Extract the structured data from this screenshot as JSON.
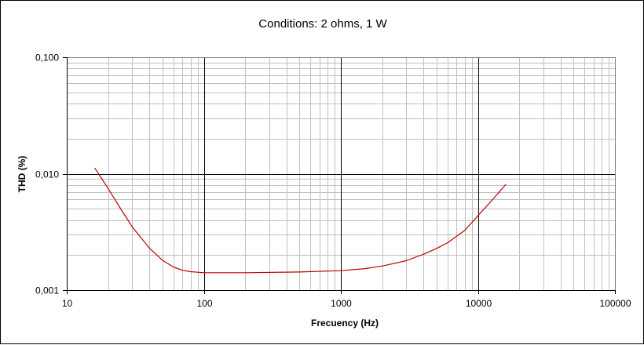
{
  "chart_data": {
    "type": "line",
    "title": "Conditions: 2 ohms, 1 W",
    "xlabel": "Frecuency (Hz)",
    "ylabel": "THD (%)",
    "x_scale": "log",
    "y_scale": "log",
    "xlim": [
      10,
      100000
    ],
    "ylim": [
      0.001,
      0.1
    ],
    "x_ticks": [
      {
        "value": 10,
        "label": "10"
      },
      {
        "value": 100,
        "label": "100"
      },
      {
        "value": 1000,
        "label": "1000"
      },
      {
        "value": 10000,
        "label": "10000"
      },
      {
        "value": 100000,
        "label": "100000"
      }
    ],
    "y_ticks": [
      {
        "value": 0.001,
        "label": "0,001"
      },
      {
        "value": 0.01,
        "label": "0,010"
      },
      {
        "value": 0.1,
        "label": "0,100"
      }
    ],
    "grid": true,
    "legend": "none",
    "series": [
      {
        "color": "#c00000",
        "x": [
          16,
          20,
          25,
          30,
          35,
          40,
          50,
          60,
          70,
          80,
          100,
          200,
          500,
          1000,
          1500,
          2000,
          3000,
          4000,
          5000,
          6000,
          8000,
          10000,
          12500,
          16000
        ],
        "y": [
          0.0112,
          0.0075,
          0.0049,
          0.0035,
          0.0028,
          0.0023,
          0.0018,
          0.00158,
          0.00148,
          0.00144,
          0.00141,
          0.00141,
          0.00143,
          0.00147,
          0.00153,
          0.00161,
          0.00179,
          0.00203,
          0.00228,
          0.00255,
          0.00325,
          0.00435,
          0.0058,
          0.0081
        ]
      }
    ]
  }
}
